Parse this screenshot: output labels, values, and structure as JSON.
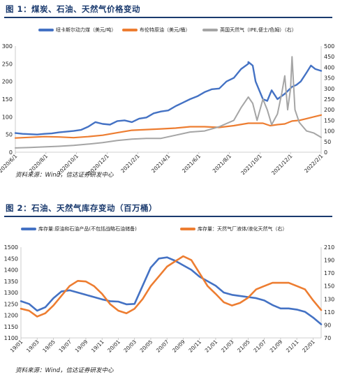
{
  "figure1": {
    "title": "图 1：煤炭、石油、天然气价格变动",
    "source": "资料来源：Wind，信达证券研发中心",
    "colors": {
      "coal": "#4472c4",
      "brent": "#ed7d31",
      "gas": "#a5a5a5"
    },
    "legend": [
      "纽卡斯尔动力煤（美元/吨）",
      "布伦特原油（美元/桶）",
      "英国天然气（IPE,便士/色姆）（右）"
    ],
    "chart_data": {
      "type": "line",
      "x_ticks": [
        "2020/6/1",
        "2020/8/1",
        "2020/10/1",
        "2020/12/1",
        "2021/2/1",
        "2021/4/1",
        "2021/6/1",
        "2021/8/1",
        "2021/10/1",
        "2021/12/1",
        "2022/2/1"
      ],
      "x_range": [
        0,
        21
      ],
      "x_units": "months since 2020/6/1",
      "y_left": {
        "ticks": [
          "0",
          "50",
          "100",
          "150",
          "200",
          "250",
          "300"
        ],
        "ylim": [
          0,
          300
        ]
      },
      "y_right": {
        "ticks": [
          "0",
          "50",
          "100",
          "150",
          "200",
          "250",
          "300",
          "350",
          "400",
          "450",
          "500"
        ],
        "ylim": [
          0,
          500
        ]
      },
      "series": [
        {
          "name": "纽卡斯尔动力煤（美元/吨）",
          "axis": "left",
          "x": [
            0,
            0.5,
            1,
            1.5,
            2,
            2.5,
            3,
            3.5,
            4,
            4.5,
            5,
            5.5,
            6,
            6.5,
            7,
            7.5,
            8,
            8.5,
            9,
            9.5,
            10,
            10.5,
            11,
            11.5,
            12,
            12.5,
            13,
            13.5,
            14,
            14.5,
            15,
            15.5,
            16,
            16,
            16.3,
            16.5,
            16.8,
            17,
            17.3,
            17.6,
            18,
            18.5,
            19,
            19.3,
            19.6,
            20,
            20.3,
            20.6,
            21
          ],
          "y": [
            54,
            52,
            51,
            50,
            52,
            53,
            56,
            58,
            60,
            63,
            72,
            85,
            80,
            78,
            88,
            90,
            85,
            95,
            98,
            110,
            115,
            118,
            130,
            140,
            150,
            158,
            170,
            178,
            180,
            200,
            210,
            235,
            250,
            255,
            245,
            200,
            170,
            150,
            145,
            175,
            150,
            165,
            185,
            190,
            200,
            225,
            245,
            235,
            230
          ]
        },
        {
          "name": "布伦特原油（美元/桶）",
          "axis": "left",
          "x": [
            0,
            1,
            2,
            3,
            4,
            5,
            6,
            7,
            8,
            9,
            10,
            11,
            12,
            13,
            14,
            15,
            16,
            17,
            17.5,
            18,
            18.5,
            19,
            19.5,
            20,
            20.5,
            21
          ],
          "y": [
            40,
            42,
            44,
            43,
            41,
            44,
            48,
            55,
            62,
            64,
            66,
            68,
            72,
            72,
            70,
            75,
            82,
            82,
            75,
            78,
            80,
            88,
            90,
            95,
            100,
            105
          ]
        },
        {
          "name": "英国天然气（IPE,便士/色姆）（右）",
          "axis": "right",
          "x": [
            0,
            1,
            2,
            3,
            4,
            5,
            6,
            7,
            8,
            9,
            10,
            11,
            12,
            13,
            14,
            15,
            15.5,
            16,
            16.3,
            16.6,
            17,
            17.3,
            17.6,
            18,
            18.3,
            18.5,
            18.7,
            18.9,
            19,
            19.2,
            19.5,
            20,
            20.5,
            21
          ],
          "y": [
            20,
            22,
            25,
            28,
            32,
            38,
            45,
            55,
            62,
            65,
            65,
            80,
            95,
            100,
            120,
            150,
            210,
            260,
            230,
            150,
            250,
            200,
            130,
            180,
            280,
            360,
            200,
            300,
            450,
            200,
            140,
            100,
            90,
            70
          ]
        }
      ]
    }
  },
  "figure2": {
    "title": "图 2：石油、天然气库存变动（百万桶）",
    "source": "资料来源：Wind，信达证券研发中心",
    "colors": {
      "oil": "#4472c4",
      "gas": "#ed7d31"
    },
    "legend": [
      "库存量:原油和石油产品(不包括战略石油储备)",
      "库存量：天然气厂液体/液化天然气（右）"
    ],
    "chart_data": {
      "type": "line",
      "x_ticks": [
        "19/01",
        "19/03",
        "19/05",
        "19/07",
        "19/09",
        "19/11",
        "20/01",
        "20/03",
        "20/05",
        "20/07",
        "20/09",
        "20/11",
        "21/01",
        "21/03",
        "21/05",
        "21/07",
        "21/09",
        "21/11",
        "22/01"
      ],
      "x_range": [
        0,
        37
      ],
      "x_units": "months since 19/01",
      "y_left": {
        "ticks": [
          "1100",
          "1150",
          "1200",
          "1250",
          "1300",
          "1350",
          "1400",
          "1450",
          "1500"
        ],
        "ylim": [
          1100,
          1500
        ]
      },
      "y_right": {
        "ticks": [
          "70",
          "90",
          "110",
          "130",
          "150",
          "170",
          "190",
          "210"
        ],
        "ylim": [
          70,
          210
        ]
      },
      "series": [
        {
          "name": "库存量:原油和石油产品(不包括战略石油储备)",
          "axis": "left",
          "x": [
            0,
            1,
            2,
            3,
            4,
            5,
            6,
            7,
            8,
            9,
            10,
            11,
            12,
            13,
            14,
            15,
            16,
            17,
            18,
            19,
            20,
            21,
            22,
            23,
            24,
            25,
            26,
            27,
            28,
            29,
            30,
            31,
            32,
            33,
            34,
            35,
            36,
            37
          ],
          "y": [
            1262,
            1250,
            1220,
            1235,
            1275,
            1305,
            1310,
            1300,
            1290,
            1280,
            1270,
            1262,
            1260,
            1248,
            1250,
            1330,
            1410,
            1450,
            1455,
            1440,
            1420,
            1400,
            1370,
            1350,
            1330,
            1300,
            1290,
            1285,
            1280,
            1275,
            1265,
            1245,
            1230,
            1230,
            1225,
            1215,
            1190,
            1160
          ]
        },
        {
          "name": "库存量：天然气厂液体/液化天然气（右）",
          "axis": "right",
          "x": [
            0,
            1,
            2,
            3,
            4,
            5,
            6,
            7,
            8,
            9,
            10,
            11,
            12,
            13,
            14,
            15,
            16,
            17,
            18,
            19,
            20,
            21,
            22,
            23,
            24,
            25,
            26,
            27,
            28,
            29,
            30,
            31,
            32,
            33,
            34,
            35,
            36,
            37
          ],
          "y": [
            115,
            112,
            103,
            108,
            120,
            135,
            150,
            158,
            157,
            150,
            138,
            122,
            112,
            108,
            115,
            130,
            150,
            165,
            180,
            188,
            196,
            190,
            170,
            150,
            138,
            125,
            120,
            124,
            132,
            145,
            150,
            155,
            155,
            155,
            150,
            145,
            128,
            113
          ]
        }
      ]
    }
  }
}
